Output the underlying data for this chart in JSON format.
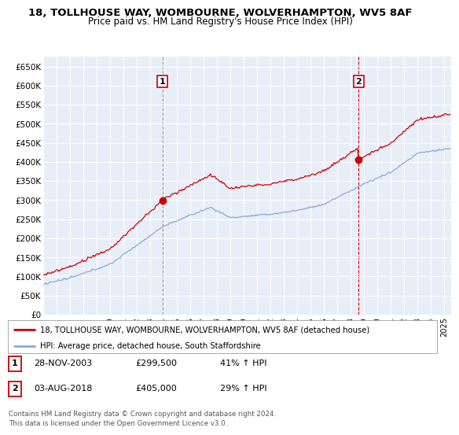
{
  "title_line1": "18, TOLLHOUSE WAY, WOMBOURNE, WOLVERHAMPTON, WV5 8AF",
  "title_line2": "Price paid vs. HM Land Registry's House Price Index (HPI)",
  "xlim_start": 1995.0,
  "xlim_end": 2025.5,
  "ylim_min": 0,
  "ylim_max": 675000,
  "yticks": [
    0,
    50000,
    100000,
    150000,
    200000,
    250000,
    300000,
    350000,
    400000,
    450000,
    500000,
    550000,
    600000,
    650000
  ],
  "ytick_labels": [
    "£0",
    "£50K",
    "£100K",
    "£150K",
    "£200K",
    "£250K",
    "£300K",
    "£350K",
    "£400K",
    "£450K",
    "£500K",
    "£550K",
    "£600K",
    "£650K"
  ],
  "sale1_date": 2003.91,
  "sale1_price": 299500,
  "sale1_label": "1",
  "sale2_date": 2018.58,
  "sale2_price": 405000,
  "sale2_label": "2",
  "line_color_red": "#cc0000",
  "line_color_blue": "#88aadd",
  "marker_color_red": "#cc0000",
  "legend_line1": "18, TOLLHOUSE WAY, WOMBOURNE, WOLVERHAMPTON, WV5 8AF (detached house)",
  "legend_line2": "HPI: Average price, detached house, South Staffordshire",
  "table_row1": [
    "1",
    "28-NOV-2003",
    "£299,500",
    "41% ↑ HPI"
  ],
  "table_row2": [
    "2",
    "03-AUG-2018",
    "£405,000",
    "29% ↑ HPI"
  ],
  "footer": "Contains HM Land Registry data © Crown copyright and database right 2024.\nThis data is licensed under the Open Government Licence v3.0.",
  "background_color": "#e8eef8",
  "grid_color": "#ffffff",
  "xtick_years": [
    1995,
    1996,
    1997,
    1998,
    1999,
    2000,
    2001,
    2002,
    2003,
    2004,
    2005,
    2006,
    2007,
    2008,
    2009,
    2010,
    2011,
    2012,
    2013,
    2014,
    2015,
    2016,
    2017,
    2018,
    2019,
    2020,
    2021,
    2022,
    2023,
    2024,
    2025
  ]
}
